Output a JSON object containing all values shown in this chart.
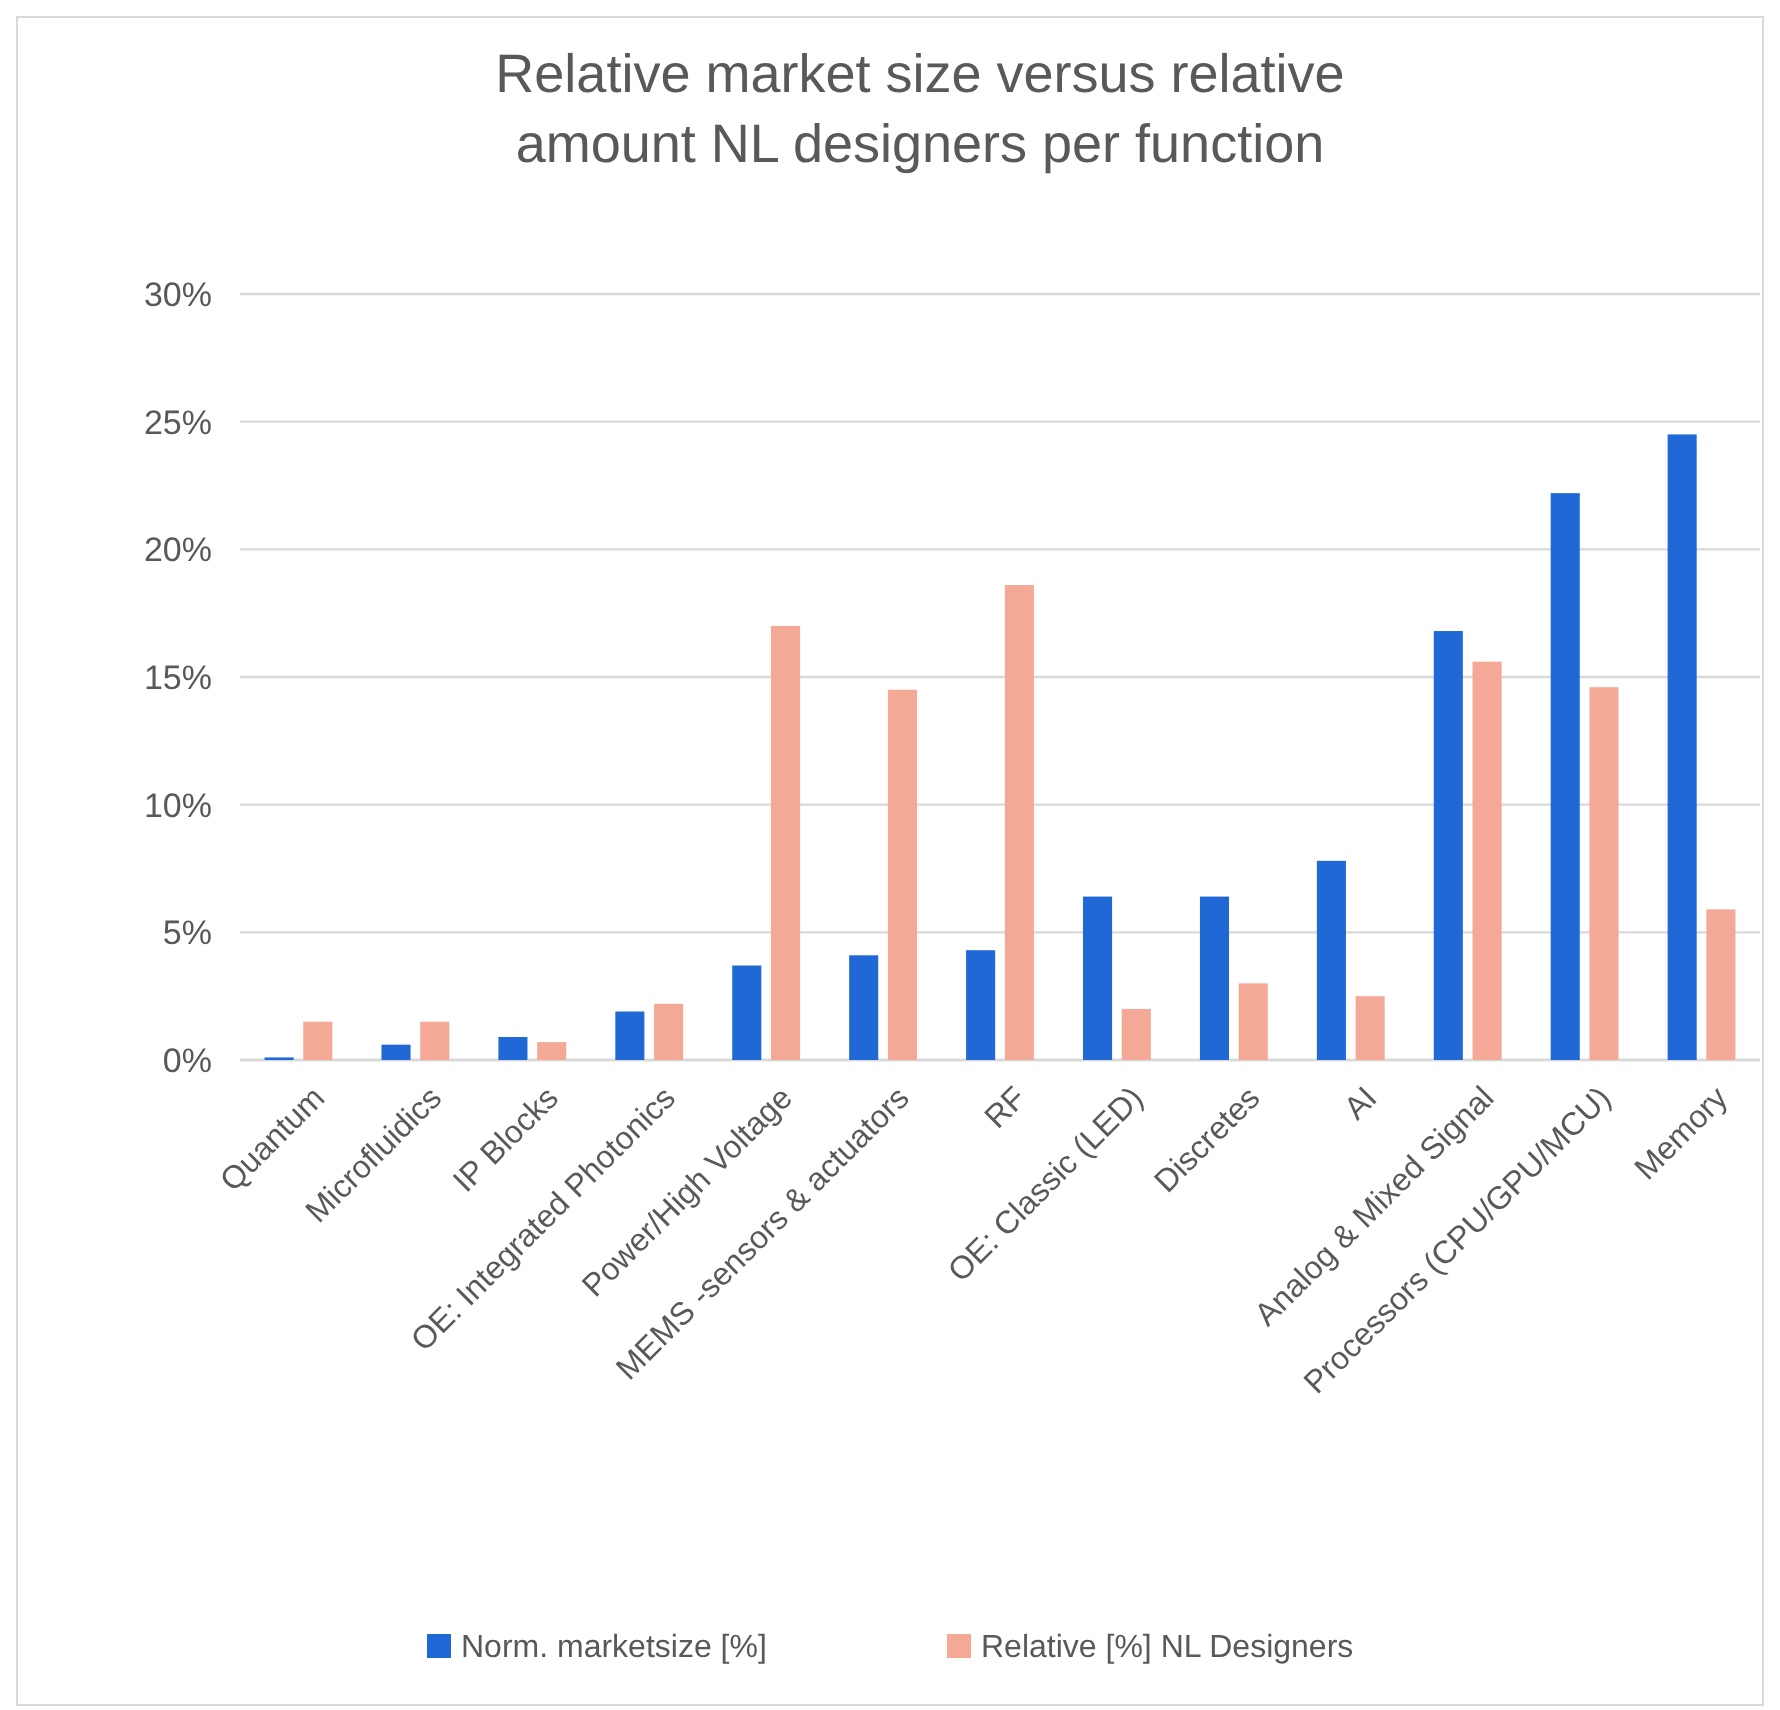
{
  "chart_data": {
    "type": "bar",
    "title": "Relative market size versus relative amount NL designers per function",
    "categories": [
      "Quantum",
      "Microfluidics",
      "IP Blocks",
      "OE: Integrated Photonics",
      "Power/High Voltage",
      "MEMS -sensors & actuators",
      "RF",
      "OE: Classic (LED)",
      "Discretes",
      "AI",
      "Analog & Mixed Signal",
      "Processors (CPU/GPU/MCU)",
      "Memory"
    ],
    "series": [
      {
        "name": "Norm. marketsize [%]",
        "color": "#1f68d6",
        "values": [
          0.1,
          0.6,
          0.9,
          1.9,
          3.7,
          4.1,
          4.3,
          6.4,
          6.4,
          7.8,
          16.8,
          22.2,
          24.5
        ]
      },
      {
        "name": "Relative [%] NL Designers",
        "color": "#f4a896",
        "values": [
          1.5,
          1.5,
          0.7,
          2.2,
          17.0,
          14.5,
          18.6,
          2.0,
          3.0,
          2.5,
          15.6,
          14.6,
          5.9
        ]
      }
    ],
    "ylim": [
      0,
      30
    ],
    "yticks": [
      {
        "value": 0,
        "label": "0%"
      },
      {
        "value": 5,
        "label": "5%"
      },
      {
        "value": 10,
        "label": "10%"
      },
      {
        "value": 15,
        "label": "15%"
      },
      {
        "value": 20,
        "label": "20%"
      },
      {
        "value": 25,
        "label": "25%"
      },
      {
        "value": 30,
        "label": "30%"
      }
    ],
    "grid": "y",
    "legend": "bottom"
  }
}
